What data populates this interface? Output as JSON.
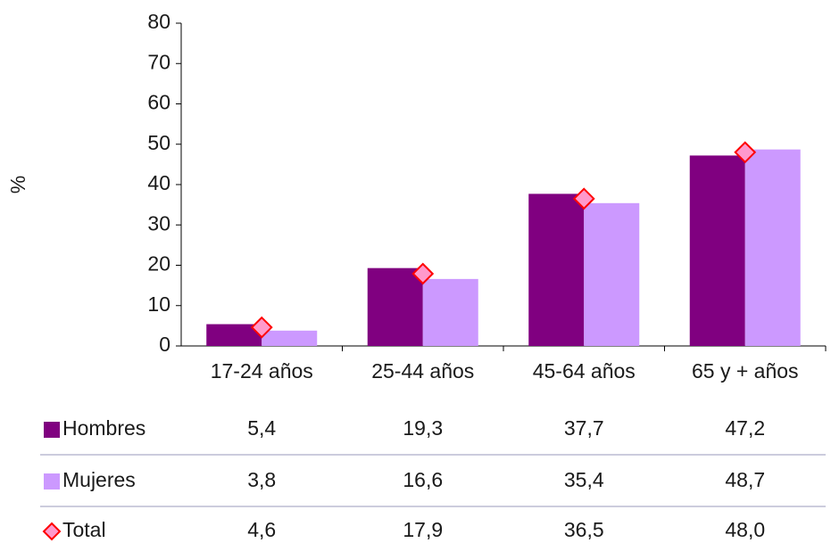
{
  "chart_data": {
    "type": "bar",
    "y_label": "%",
    "categories": [
      "17-24 años",
      "25-44 años",
      "45-64 años",
      "65 y + años"
    ],
    "series": [
      {
        "name": "Hombres",
        "color": "#800080",
        "values": [
          5.4,
          19.3,
          37.7,
          47.2
        ],
        "value_labels": [
          "5,4",
          "19,3",
          "37,7",
          "47,2"
        ]
      },
      {
        "name": "Mujeres",
        "color": "#cc99ff",
        "values": [
          3.8,
          16.6,
          35.4,
          48.7
        ],
        "value_labels": [
          "3,8",
          "16,6",
          "35,4",
          "48,7"
        ]
      },
      {
        "name": "Total",
        "type": "marker",
        "color": "#ff99cc",
        "edge_color": "#ff0000",
        "values": [
          4.6,
          17.9,
          36.5,
          48.0
        ],
        "value_labels": [
          "4,6",
          "17,9",
          "36,5",
          "48,0"
        ]
      }
    ],
    "ylim": [
      0,
      80
    ],
    "yticks": [
      0,
      10,
      20,
      30,
      40,
      50,
      60,
      70,
      80
    ]
  }
}
